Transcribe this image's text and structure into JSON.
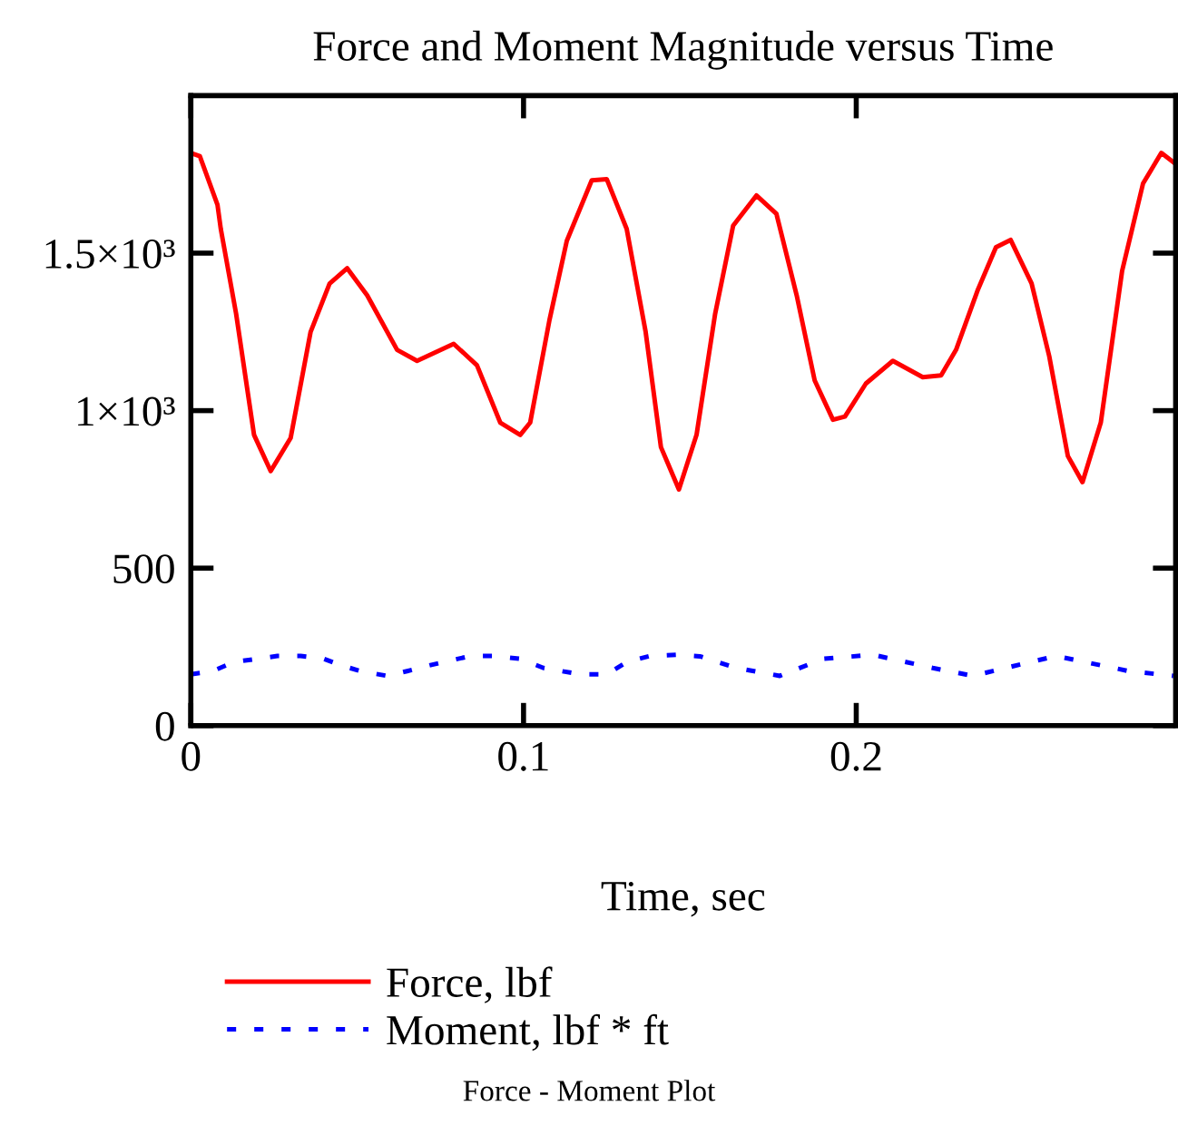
{
  "chart_data": {
    "type": "line",
    "title": "Force and Moment Magnitude versus Time",
    "xlabel": "Time, sec",
    "xlim": [
      0,
      0.296
    ],
    "xticks": [
      0,
      0.1,
      0.2
    ],
    "ylim": [
      0,
      2000
    ],
    "yticks": [
      0,
      500,
      {
        "value": 1000,
        "label": "1×10³"
      },
      {
        "value": 1500,
        "label": "1.5×10³"
      }
    ],
    "grid": false,
    "legend": "bottom",
    "marker": "none",
    "annotations": [
      "Force - Moment Plot"
    ],
    "series": [
      {
        "name": "Force, lbf",
        "color": "#ff0000",
        "line_style": "solid",
        "x": [
          0,
          0.0027,
          0.008,
          0.009,
          0.0136,
          0.019,
          0.024,
          0.03,
          0.036,
          0.0417,
          0.047,
          0.053,
          0.062,
          0.068,
          0.079,
          0.086,
          0.093,
          0.099,
          0.102,
          0.1078,
          0.113,
          0.1205,
          0.125,
          0.131,
          0.1367,
          0.1413,
          0.1467,
          0.152,
          0.1576,
          0.163,
          0.17,
          0.176,
          0.1821,
          0.1875,
          0.193,
          0.1966,
          0.2029,
          0.211,
          0.22,
          0.2255,
          0.23,
          0.2366,
          0.242,
          0.2464,
          0.2527,
          0.258,
          0.2636,
          0.268,
          0.2735,
          0.2799,
          0.2862,
          0.2917,
          0.2953
        ],
        "values": [
          1818,
          1808,
          1654,
          1577,
          1308,
          923,
          808,
          913,
          1250,
          1403,
          1452,
          1366,
          1193,
          1158,
          1212,
          1144,
          962,
          923,
          962,
          1288,
          1539,
          1731,
          1735,
          1577,
          1250,
          884,
          750,
          923,
          1308,
          1587,
          1683,
          1625,
          1366,
          1096,
          971,
          981,
          1086,
          1158,
          1106,
          1112,
          1193,
          1385,
          1519,
          1542,
          1404,
          1173,
          856,
          773,
          962,
          1443,
          1721,
          1818,
          1789
        ]
      },
      {
        "name": "Moment, lbf * ft",
        "color": "#0000ff",
        "line_style": "dotted",
        "x": [
          0,
          0.0065,
          0.013,
          0.026,
          0.033,
          0.04,
          0.045,
          0.051,
          0.059,
          0.065,
          0.072,
          0.084,
          0.091,
          0.099,
          0.106,
          0.117,
          0.125,
          0.131,
          0.138,
          0.146,
          0.153,
          0.164,
          0.177,
          0.19,
          0.205,
          0.223,
          0.235,
          0.26,
          0.282,
          0.2953
        ],
        "values": [
          163,
          173,
          202,
          221,
          221,
          212,
          192,
          173,
          158,
          173,
          192,
          221,
          221,
          212,
          183,
          163,
          163,
          202,
          221,
          225,
          220,
          183,
          158,
          212,
          225,
          183,
          158,
          221,
          173,
          158
        ]
      }
    ]
  }
}
